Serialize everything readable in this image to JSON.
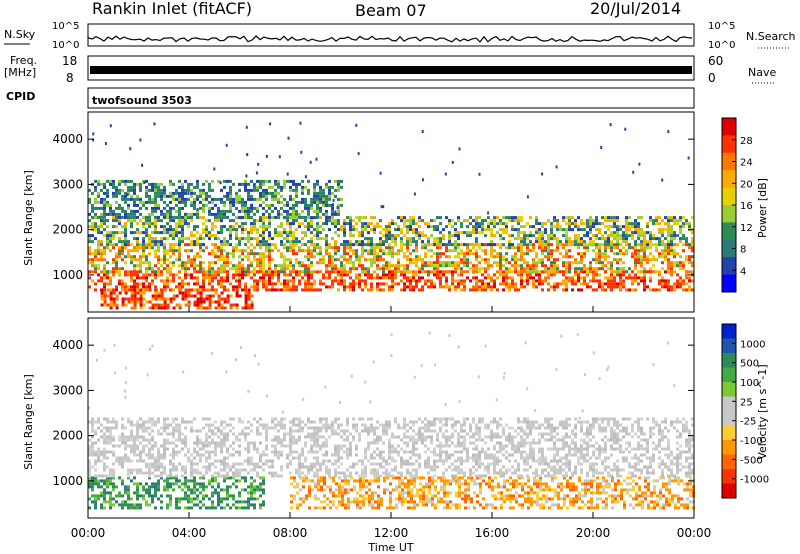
{
  "header": {
    "station": "Rankin Inlet (fitACF)",
    "beam": "Beam 07",
    "date": "20/Jul/2014"
  },
  "top_panels": {
    "nsky_label": "N.Sky",
    "nsky_ticks": [
      "10^5",
      "10^0"
    ],
    "nsearch_label": "N.Search",
    "nsearch_ticks": [
      "10^5",
      "10^0"
    ],
    "freq_label": "Freq.",
    "freq_unit": "[MHz]",
    "freq_ticks": [
      "18",
      "8"
    ],
    "nave_label": "Nave",
    "nave_ticks": [
      "60",
      "0"
    ],
    "cpid_label": "CPID",
    "cpid_value": "twofsound 3503"
  },
  "chart_data": [
    {
      "type": "heatmap",
      "panel": "power",
      "ylabel": "Slant Range [km]",
      "xlabel": "",
      "x_ticks": [
        "00:00",
        "04:00",
        "08:00",
        "12:00",
        "16:00",
        "20:00",
        "00:00"
      ],
      "ylim": [
        180,
        4600
      ],
      "y_ticks": [
        1000,
        2000,
        3000,
        4000
      ],
      "colorbar": {
        "label": "Power [dB]",
        "ticks": [
          "28",
          "24",
          "20",
          "16",
          "12",
          "8",
          "4"
        ],
        "colors": [
          "#dd0000",
          "#ff3300",
          "#ff7700",
          "#ffaa00",
          "#e8d000",
          "#9acd32",
          "#2e8b57",
          "#2a7a7a",
          "#2244aa",
          "#0000ff"
        ]
      },
      "bands": [
        {
          "range": [
            250,
            700
          ],
          "hours": [
            0.5,
            6.5
          ],
          "level": "high"
        },
        {
          "range": [
            700,
            1100
          ],
          "hours": [
            0,
            24
          ],
          "level": "high"
        },
        {
          "range": [
            1100,
            1700
          ],
          "hours": [
            0,
            24
          ],
          "level": "mid"
        },
        {
          "range": [
            1700,
            2300
          ],
          "hours": [
            0,
            24
          ],
          "level": "low"
        },
        {
          "range": [
            2300,
            3100
          ],
          "hours": [
            0,
            10
          ],
          "level": "weak"
        }
      ]
    },
    {
      "type": "heatmap",
      "panel": "velocity",
      "ylabel": "Slant Range [km]",
      "xlabel": "Time UT",
      "x_ticks": [
        "00:00",
        "04:00",
        "08:00",
        "12:00",
        "16:00",
        "20:00",
        "00:00"
      ],
      "ylim": [
        180,
        4600
      ],
      "y_ticks": [
        1000,
        2000,
        3000,
        4000
      ],
      "colorbar": {
        "label": "Velocity [m s^-1]",
        "ticks": [
          "1000",
          "500",
          "100",
          "25",
          "-25",
          "-100",
          "-500",
          "-1000"
        ],
        "colors": [
          "#0022cc",
          "#2255aa",
          "#2e8b57",
          "#44aa44",
          "#77cc33",
          "#c8c8c8",
          "#c8c8c8",
          "#ffcc33",
          "#ff9900",
          "#ff6600",
          "#ff3300",
          "#dd0000"
        ]
      },
      "bands": [
        {
          "range": [
            400,
            1100
          ],
          "hours": [
            0,
            7
          ],
          "level": "positive"
        },
        {
          "range": [
            400,
            1100
          ],
          "hours": [
            8,
            24
          ],
          "level": "negative"
        },
        {
          "range": [
            1100,
            2400
          ],
          "hours": [
            0,
            24
          ],
          "level": "ground"
        }
      ]
    }
  ]
}
